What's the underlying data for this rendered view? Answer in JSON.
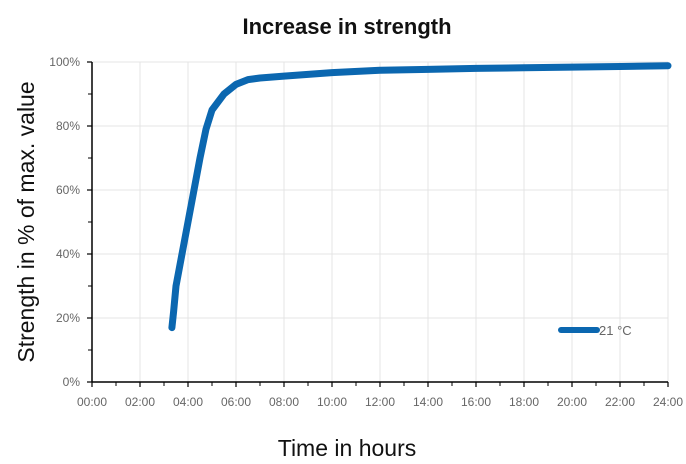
{
  "chart_data": {
    "type": "line",
    "title": "Increase in strength",
    "xlabel": "Time in hours",
    "ylabel": "Strength in % of max. value",
    "x_tick_labels": [
      "00:00",
      "02:00",
      "04:00",
      "06:00",
      "08:00",
      "10:00",
      "12:00",
      "14:00",
      "16:00",
      "18:00",
      "20:00",
      "22:00",
      "24:00"
    ],
    "y_tick_labels": [
      "0%",
      "20%",
      "40%",
      "60%",
      "80%",
      "100%"
    ],
    "xlim": [
      0,
      24
    ],
    "ylim": [
      0,
      100
    ],
    "x_unit": "hours",
    "grid": true,
    "legend_position": "bottom-right",
    "series": [
      {
        "name": "21 °C",
        "color": "#0b67b0",
        "points": [
          [
            3.33,
            17
          ],
          [
            3.4,
            22
          ],
          [
            3.5,
            30
          ],
          [
            3.75,
            40
          ],
          [
            4.0,
            50
          ],
          [
            4.25,
            60
          ],
          [
            4.5,
            70
          ],
          [
            4.75,
            79
          ],
          [
            5.0,
            85
          ],
          [
            5.5,
            90
          ],
          [
            6.0,
            93
          ],
          [
            6.5,
            94.5
          ],
          [
            7.0,
            95
          ],
          [
            8.0,
            95.6
          ],
          [
            10.0,
            96.7
          ],
          [
            12.0,
            97.4
          ],
          [
            14.0,
            97.7
          ],
          [
            16.0,
            98.0
          ],
          [
            18.0,
            98.2
          ],
          [
            20.0,
            98.4
          ],
          [
            22.0,
            98.6
          ],
          [
            24.0,
            98.8
          ]
        ]
      }
    ]
  }
}
